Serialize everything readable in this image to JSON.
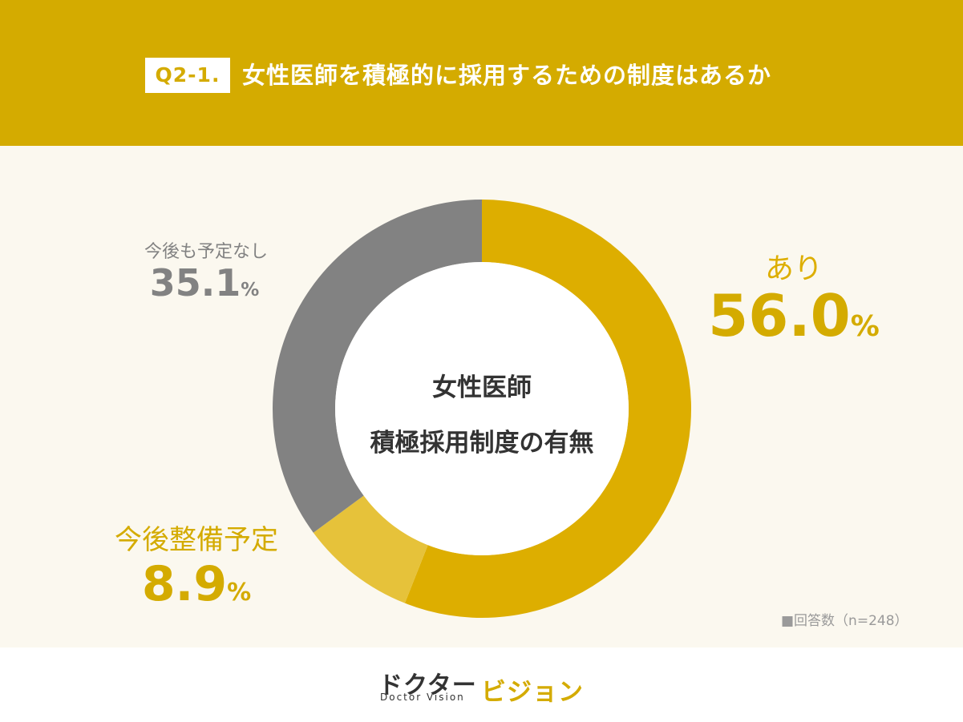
{
  "header": {
    "badge": "Q2-1.",
    "title": "女性医師を積極的に採用するための制度はあるか"
  },
  "chart_data": {
    "type": "pie",
    "categories": [
      "あり",
      "今後整備予定",
      "今後も予定なし"
    ],
    "values": [
      56.0,
      8.9,
      35.1
    ],
    "value_labels": [
      "56.0",
      "8.9",
      "35.1"
    ],
    "unit": "%",
    "colors": [
      "#ddae00",
      "#e6c23a",
      "#828282"
    ],
    "center_title": [
      "女性医師",
      "積極採用制度の有無"
    ],
    "note": "■回答数（n=248）"
  },
  "logo": {
    "jp_main": "ドクター",
    "jp_sub": "ビジョン",
    "en": "Doctor Vision"
  }
}
